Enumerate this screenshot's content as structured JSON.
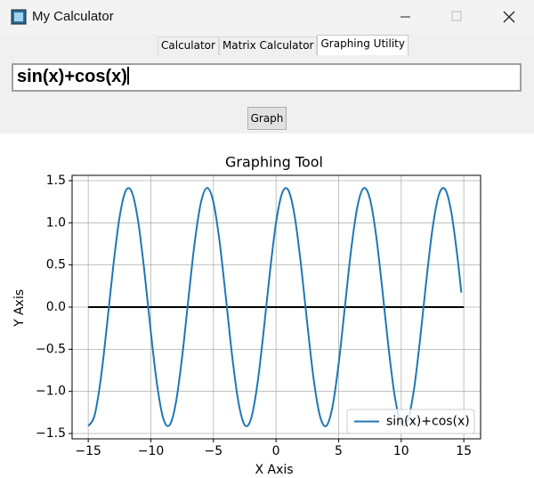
{
  "window": {
    "title": "My Calculator"
  },
  "tabs": [
    "Calculator",
    "Matrix Calculator",
    "Graphing Utility"
  ],
  "selected_tab": 2,
  "input": {
    "value": "sin(x)+cos(x)"
  },
  "button": "Graph",
  "chart_data": {
    "type": "line",
    "title": "Graphing Tool",
    "x_label": "X Axis",
    "y_label": "Y Axis",
    "x": [
      -15,
      -14.5,
      -14,
      -13.5,
      -13,
      -12.5,
      -12,
      -11.5,
      -11,
      -10.5,
      -10,
      -9.5,
      -9,
      -8.5,
      -8,
      -7.5,
      -7,
      -6.5,
      -6,
      -5.5,
      -5,
      -4.5,
      -4,
      -3.5,
      -3,
      -2.5,
      -2,
      -1.5,
      -1,
      -0.5,
      0,
      0.5,
      1,
      1.5,
      2,
      2.5,
      3,
      3.5,
      4,
      4.5,
      5,
      5.5,
      6,
      6.5,
      7,
      7.5,
      8,
      8.5,
      9,
      9.5,
      10,
      10.5,
      11,
      11.5,
      12,
      12.5,
      13,
      13.5,
      14,
      14.5,
      14.8
    ],
    "series": [
      {
        "name": "sin(x)+cos(x)",
        "color": "#1f77b4",
        "values": [
          -1.41,
          -1.289,
          -0.854,
          -0.209,
          0.487,
          1.064,
          1.381,
          1.359,
          1.004,
          0.404,
          -0.295,
          -0.922,
          -1.324,
          -1.4,
          -1.135,
          -0.591,
          0.097,
          0.762,
          1.24,
          1.414,
          1.243,
          0.767,
          0.103,
          -0.586,
          -1.131,
          -1.4,
          -1.326,
          -0.927,
          -0.301,
          0.398,
          1.0,
          1.357,
          1.382,
          1.068,
          0.493,
          -0.203,
          -0.849,
          -1.287,
          -1.411,
          -1.188,
          -0.675,
          0.003,
          0.681,
          1.192,
          1.411,
          1.285,
          0.844,
          0.196,
          -0.499,
          -1.072,
          -1.383,
          -1.355,
          -0.996,
          -0.392,
          0.307,
          0.931,
          1.328,
          1.399,
          1.127,
          0.58,
          0.173
        ]
      }
    ],
    "reference_line": {
      "x": [
        -15,
        15
      ],
      "values": [
        0,
        0
      ],
      "color": "#000000"
    },
    "xlim": [
      -16.29,
      16.34
    ],
    "ylim": [
      -1.563,
      1.563
    ],
    "xticks": [
      {
        "value": -15,
        "label": "−15"
      },
      {
        "value": -10,
        "label": "−10"
      },
      {
        "value": -5,
        "label": "−5"
      },
      0,
      5,
      10,
      15
    ],
    "yticks": [
      {
        "value": -1.5,
        "label": "−1.5"
      },
      {
        "value": -1,
        "label": "−1.0"
      },
      {
        "value": -0.5,
        "label": "−0.5"
      },
      {
        "value": 0,
        "label": "0.0"
      },
      {
        "value": 0.5,
        "label": "0.5"
      },
      {
        "value": 1,
        "label": "1.0"
      },
      {
        "value": 1.5,
        "label": "1.5"
      }
    ],
    "grid": true,
    "legend": "lower right"
  }
}
